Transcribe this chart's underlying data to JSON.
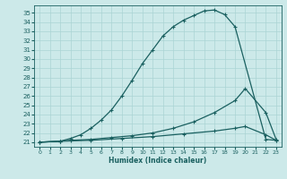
{
  "xlabel": "Humidex (Indice chaleur)",
  "bg_color": "#cce9e9",
  "grid_color": "#aad4d4",
  "line_color": "#1a6060",
  "xlim": [
    -0.5,
    23.5
  ],
  "ylim": [
    20.5,
    35.8
  ],
  "xticks": [
    0,
    1,
    2,
    3,
    4,
    5,
    6,
    7,
    8,
    9,
    10,
    11,
    12,
    13,
    14,
    15,
    16,
    17,
    18,
    19,
    20,
    21,
    22,
    23
  ],
  "yticks": [
    21,
    22,
    23,
    24,
    25,
    26,
    27,
    28,
    29,
    30,
    31,
    32,
    33,
    34,
    35
  ],
  "curve1_x": [
    0,
    2,
    3,
    4,
    5,
    6,
    7,
    8,
    9,
    10,
    11,
    12,
    13,
    14,
    15,
    16,
    17,
    18,
    19,
    22,
    23
  ],
  "curve1_y": [
    21.0,
    21.1,
    21.4,
    21.8,
    22.5,
    23.4,
    24.5,
    26.0,
    27.7,
    29.5,
    31.0,
    32.5,
    33.5,
    34.2,
    34.7,
    35.2,
    35.3,
    34.8,
    33.5,
    21.3,
    21.2
  ],
  "curve2_x": [
    0,
    2,
    3,
    5,
    7,
    9,
    11,
    13,
    15,
    17,
    19,
    20,
    22,
    23
  ],
  "curve2_y": [
    21.0,
    21.1,
    21.2,
    21.3,
    21.5,
    21.7,
    22.0,
    22.5,
    23.2,
    24.2,
    25.5,
    26.8,
    24.2,
    21.3
  ],
  "curve3_x": [
    0,
    2,
    5,
    8,
    11,
    14,
    17,
    19,
    20,
    22,
    23
  ],
  "curve3_y": [
    21.0,
    21.1,
    21.2,
    21.4,
    21.6,
    21.9,
    22.2,
    22.5,
    22.7,
    21.8,
    21.2
  ]
}
